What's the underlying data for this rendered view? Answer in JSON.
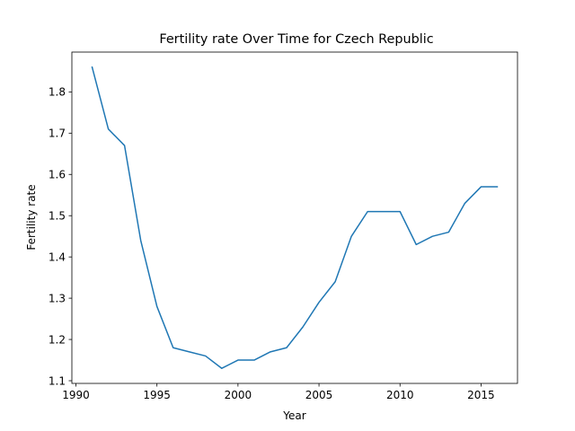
{
  "chart_data": {
    "type": "line",
    "title": "Fertility rate Over Time for Czech Republic",
    "xlabel": "Year",
    "ylabel": "Fertility rate",
    "xlim": [
      1989.75,
      2017.25
    ],
    "ylim": [
      1.0935,
      1.8965
    ],
    "xticks": [
      1990,
      1995,
      2000,
      2005,
      2010,
      2015
    ],
    "yticks": [
      1.1,
      1.2,
      1.3,
      1.4,
      1.5,
      1.6,
      1.7,
      1.8
    ],
    "xtick_labels": [
      "1990",
      "1995",
      "2000",
      "2005",
      "2010",
      "2015"
    ],
    "ytick_labels": [
      "1.1",
      "1.2",
      "1.3",
      "1.4",
      "1.5",
      "1.6",
      "1.7",
      "1.8"
    ],
    "grid": false,
    "legend": "none",
    "line_color": "#1f77b4",
    "series": [
      {
        "x": [
          1991,
          1992,
          1993,
          1994,
          1995,
          1996,
          1997,
          1998,
          1999,
          2000,
          2001,
          2002,
          2003,
          2004,
          2005,
          2006,
          2007,
          2008,
          2009,
          2010,
          2011,
          2012,
          2013,
          2014,
          2015,
          2016
        ],
        "values": [
          1.86,
          1.71,
          1.67,
          1.44,
          1.28,
          1.18,
          1.17,
          1.16,
          1.13,
          1.15,
          1.15,
          1.17,
          1.18,
          1.23,
          1.29,
          1.34,
          1.45,
          1.51,
          1.51,
          1.51,
          1.43,
          1.45,
          1.46,
          1.53,
          1.57,
          1.57
        ]
      }
    ]
  }
}
